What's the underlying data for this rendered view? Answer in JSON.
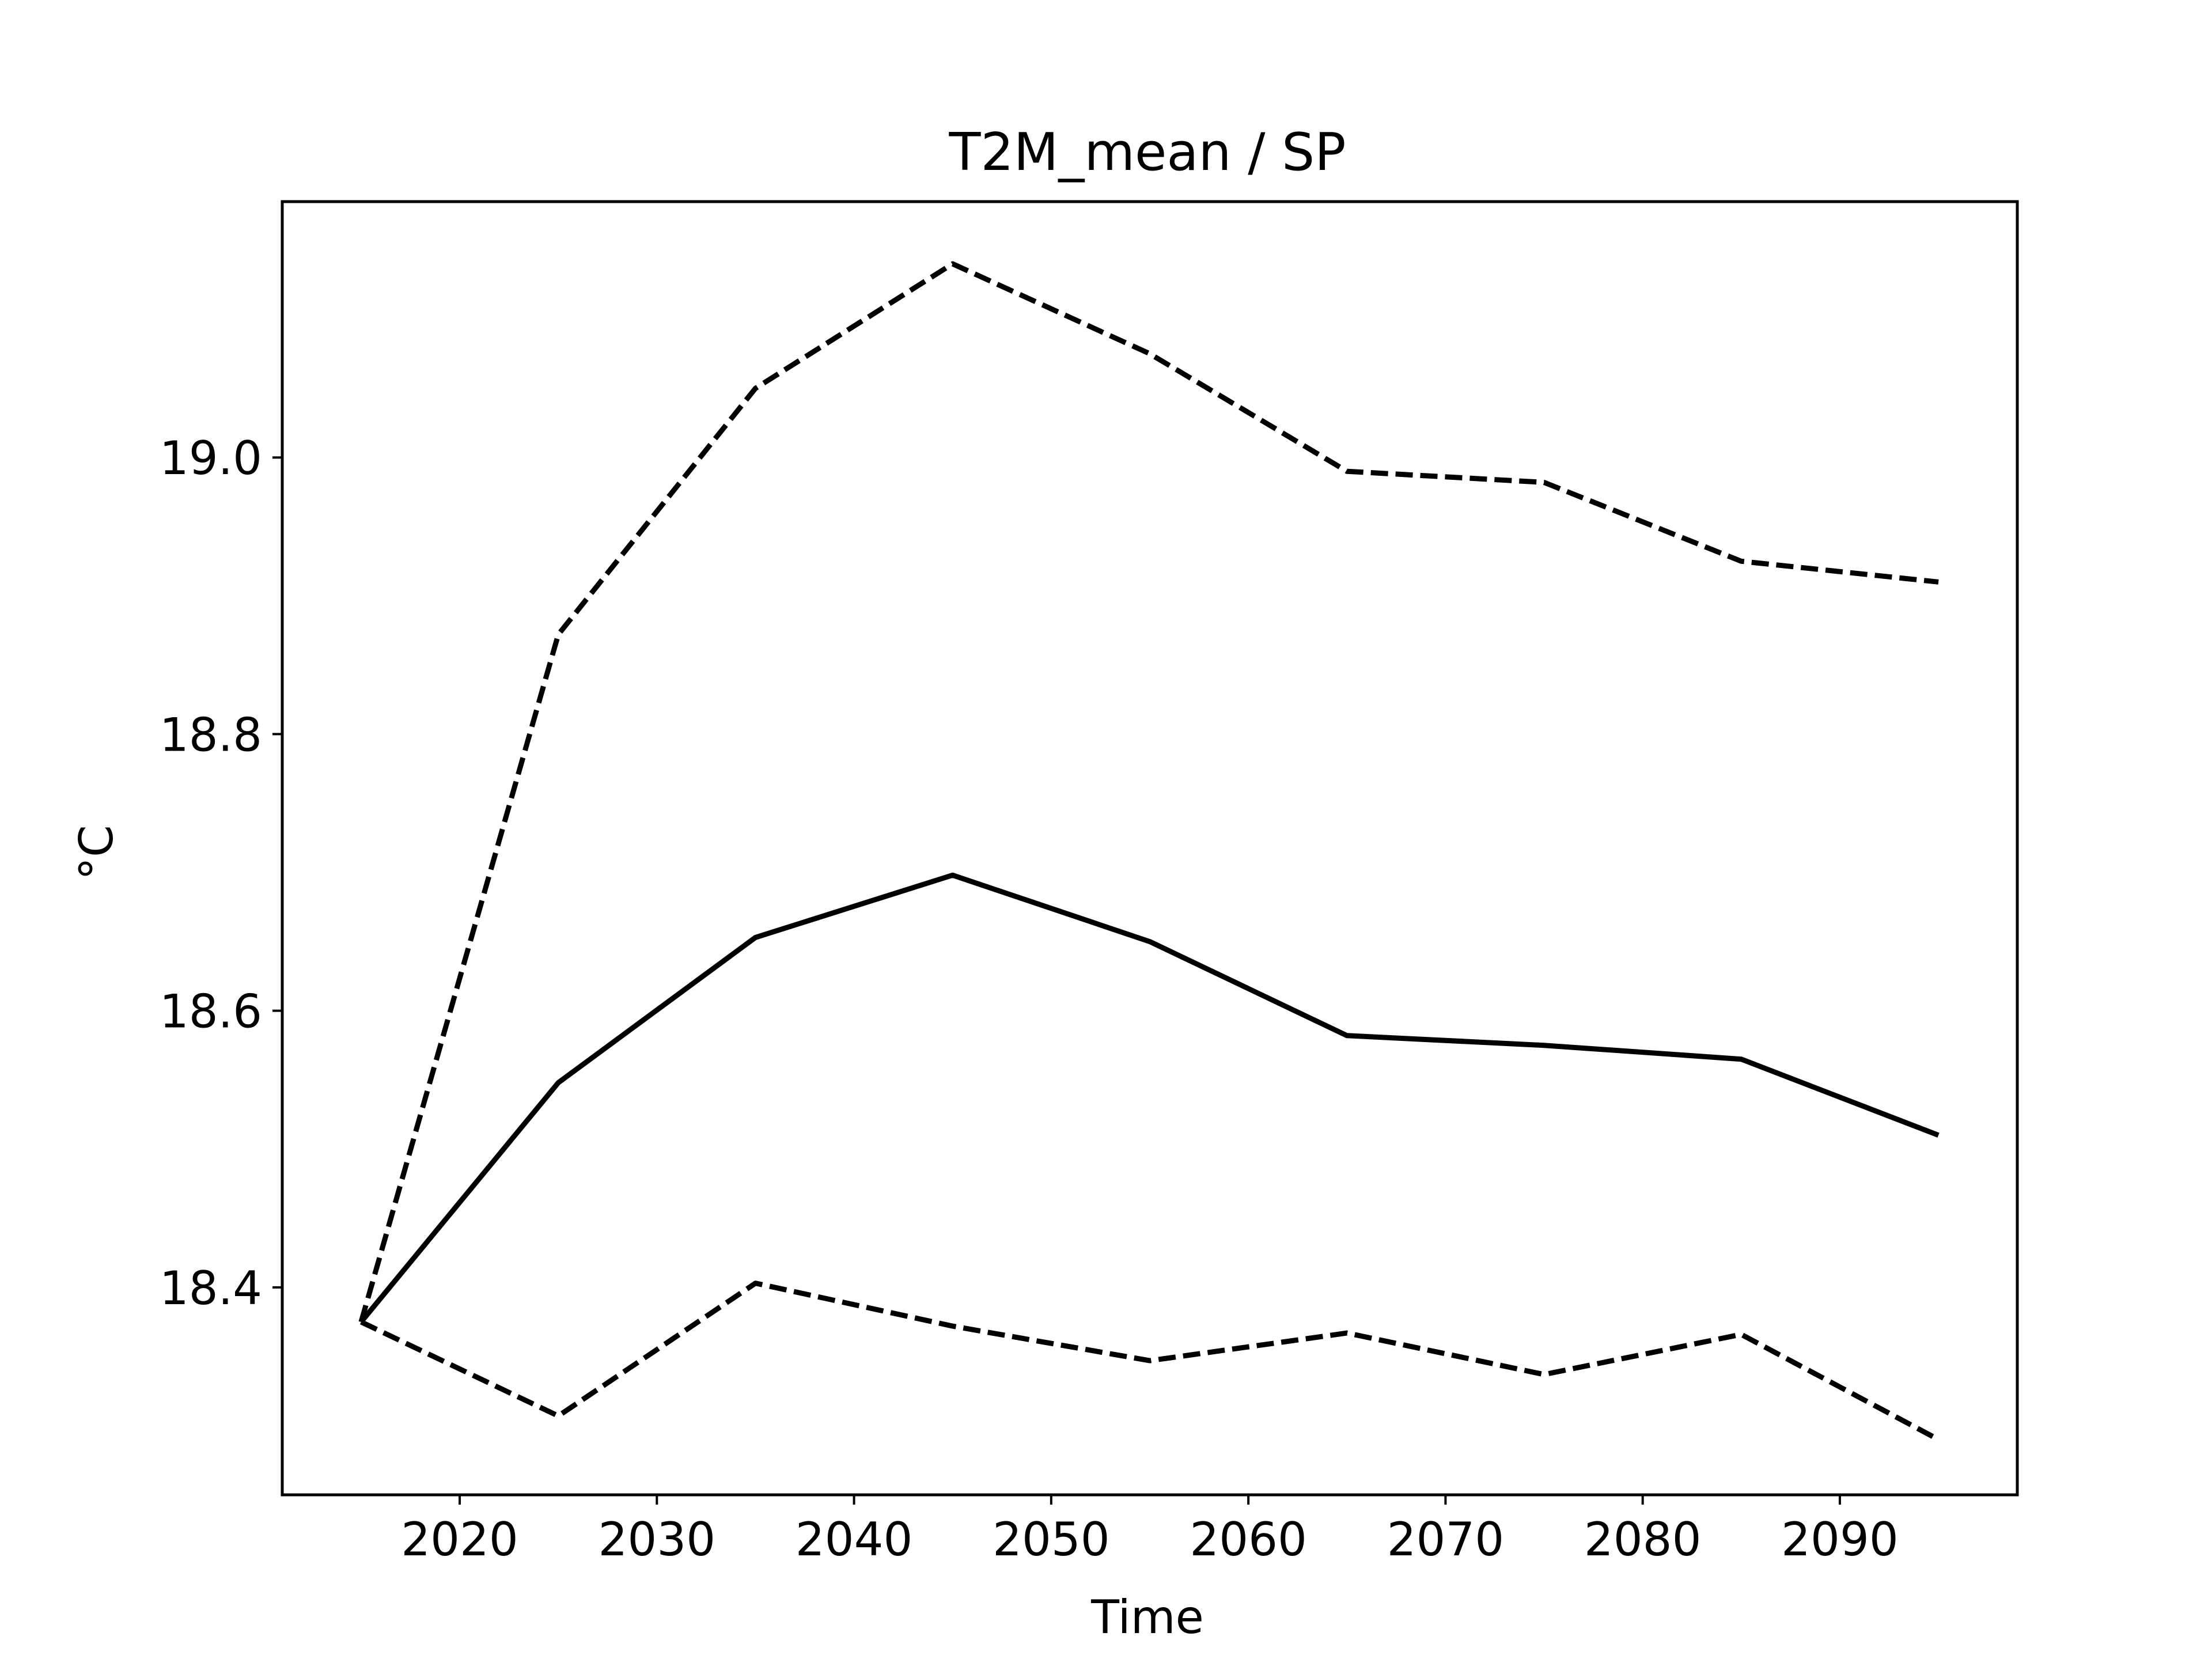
{
  "chart_data": {
    "type": "line",
    "title": "T2M_mean / SP",
    "xlabel": "Time",
    "ylabel": "°C",
    "xlim": [
      2011,
      2099
    ],
    "ylim": [
      18.25,
      19.185
    ],
    "grid": false,
    "x": [
      2015,
      2025,
      2035,
      2045,
      2055,
      2065,
      2075,
      2085,
      2095
    ],
    "xticks": [
      2020,
      2030,
      2040,
      2050,
      2060,
      2070,
      2080,
      2090
    ],
    "yticks": [
      18.4,
      18.6,
      18.8,
      19.0
    ],
    "series": [
      {
        "style": "dashed",
        "color": "#000000",
        "values": [
          18.375,
          18.872,
          19.05,
          19.14,
          19.075,
          18.99,
          18.982,
          18.925,
          18.91
        ]
      },
      {
        "style": "solid",
        "color": "#000000",
        "values": [
          18.375,
          18.548,
          18.653,
          18.698,
          18.65,
          18.582,
          18.575,
          18.565,
          18.51
        ]
      },
      {
        "style": "dashed",
        "color": "#000000",
        "values": [
          18.375,
          18.307,
          18.403,
          18.372,
          18.347,
          18.367,
          18.337,
          18.366,
          18.29
        ]
      }
    ]
  }
}
